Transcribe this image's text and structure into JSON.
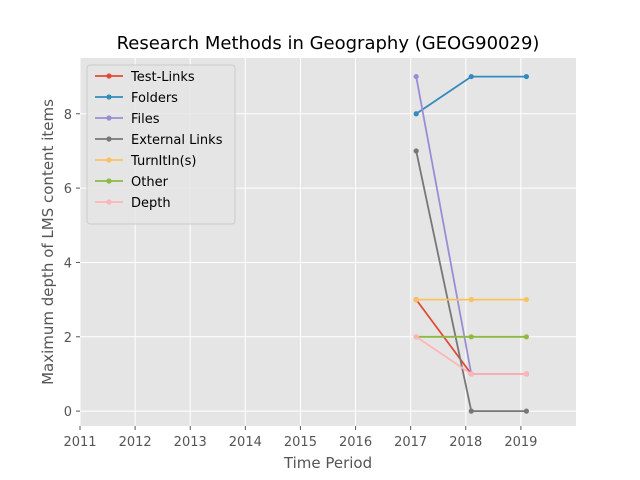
{
  "chart_data": {
    "type": "line",
    "title": "Research Methods in Geography (GEOG90029)",
    "xlabel": "Time Period",
    "ylabel": "Maximum depth of LMS content items",
    "xlim": [
      2011,
      2020
    ],
    "ylim": [
      -0.4,
      9.5
    ],
    "x_ticks": [
      2011,
      2012,
      2013,
      2014,
      2015,
      2016,
      2017,
      2018,
      2019
    ],
    "y_ticks": [
      0,
      2,
      4,
      6,
      8
    ],
    "x_tick_labels": [
      "2011",
      "2012",
      "2013",
      "2014",
      "2015",
      "2016",
      "2017",
      "2018",
      "2019"
    ],
    "y_tick_labels": [
      "0",
      "2",
      "4",
      "6",
      "8"
    ],
    "grid": true,
    "legend_position": "top-left",
    "x": [
      2017.1,
      2018.1,
      2019.1
    ],
    "series": [
      {
        "name": "Test-Links",
        "color": "#e24a33",
        "values": [
          3,
          1,
          1
        ]
      },
      {
        "name": "Folders",
        "color": "#348abd",
        "values": [
          8,
          9,
          9
        ]
      },
      {
        "name": "Files",
        "color": "#988ed5",
        "values": [
          9,
          1,
          1
        ]
      },
      {
        "name": "External Links",
        "color": "#777777",
        "values": [
          7,
          0,
          0
        ]
      },
      {
        "name": "TurnItIn(s)",
        "color": "#fbc15e",
        "values": [
          3,
          3,
          3
        ]
      },
      {
        "name": "Other",
        "color": "#8eba42",
        "values": [
          2,
          2,
          2
        ]
      },
      {
        "name": "Depth",
        "color": "#ffb5b8",
        "values": [
          2,
          1,
          1
        ]
      }
    ]
  }
}
